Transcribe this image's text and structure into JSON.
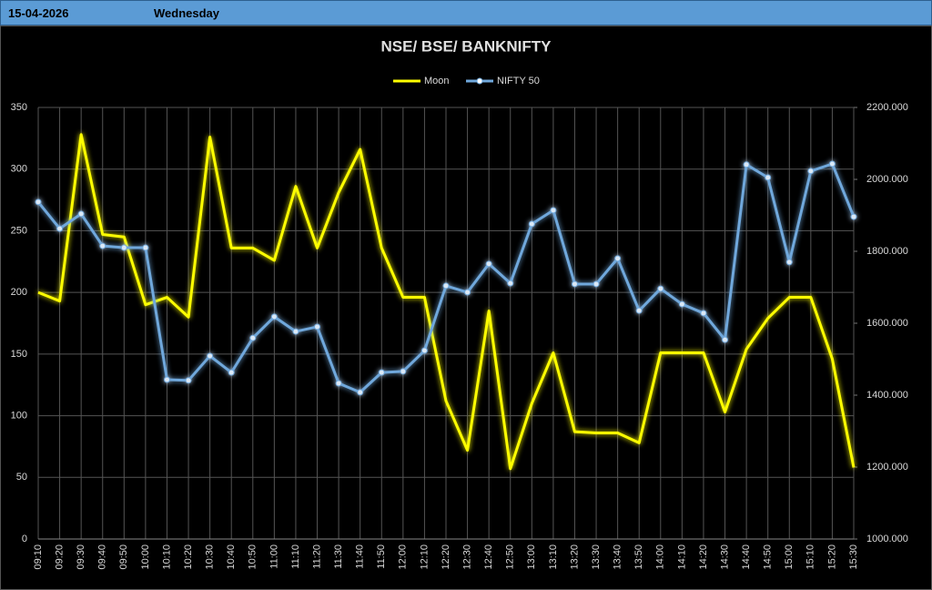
{
  "header": {
    "date": "15-04-2026",
    "day": "Wednesday"
  },
  "chart_data": {
    "type": "line",
    "title": "NSE/ BSE/ BANKNIFTY",
    "categories": [
      "09:10",
      "09:20",
      "09:30",
      "09:40",
      "09:50",
      "10:00",
      "10:10",
      "10:20",
      "10:30",
      "10:40",
      "10:50",
      "11:00",
      "11:10",
      "11:20",
      "11:30",
      "11:40",
      "11:50",
      "12:00",
      "12:10",
      "12:20",
      "12:30",
      "12:40",
      "12:50",
      "13:00",
      "13:10",
      "13:20",
      "13:30",
      "13:40",
      "13:50",
      "14:00",
      "14:10",
      "14:20",
      "14:30",
      "14:40",
      "14:50",
      "15:00",
      "15:10",
      "15:20",
      "15:30"
    ],
    "series": [
      {
        "name": "Moon",
        "color": "#ffff00",
        "axis": "y",
        "markers": false,
        "values": [
          200,
          193,
          328,
          247,
          245,
          190,
          196,
          180,
          326,
          236,
          236,
          226,
          286,
          236,
          281,
          316,
          236,
          196,
          196,
          112,
          72,
          185,
          57,
          110,
          151,
          87,
          86,
          86,
          78,
          151,
          151,
          151,
          103,
          154,
          179,
          196,
          196,
          146,
          58
        ]
      },
      {
        "name": "NIFTY 50",
        "color": "#6fa8dc",
        "axis": "y2",
        "markers": true,
        "values": [
          1937,
          1863,
          1904,
          1815,
          1810,
          1810,
          1443,
          1441,
          1509,
          1463,
          1559,
          1618,
          1577,
          1590,
          1433,
          1408,
          1463,
          1466,
          1524,
          1704,
          1686,
          1765,
          1711,
          1876,
          1914,
          1709,
          1709,
          1780,
          1635,
          1696,
          1653,
          1628,
          1554,
          2041,
          2005,
          1770,
          2023,
          2043,
          1896
        ]
      }
    ],
    "ylim": [
      0,
      350
    ],
    "yticks": [
      0,
      50,
      100,
      150,
      200,
      250,
      300,
      350
    ],
    "y2lim": [
      1000,
      2200
    ],
    "y2ticks": [
      {
        "value": 1000,
        "label": "1000.000"
      },
      {
        "value": 1200,
        "label": "1200.000"
      },
      {
        "value": 1400,
        "label": "1400.000"
      },
      {
        "value": 1600,
        "label": "1600.000"
      },
      {
        "value": 1800,
        "label": "1800.000"
      },
      {
        "value": 2000,
        "label": "2000.000"
      },
      {
        "value": 2200,
        "label": "2200.000"
      }
    ],
    "grid": true,
    "legend": "top",
    "glow": true
  }
}
